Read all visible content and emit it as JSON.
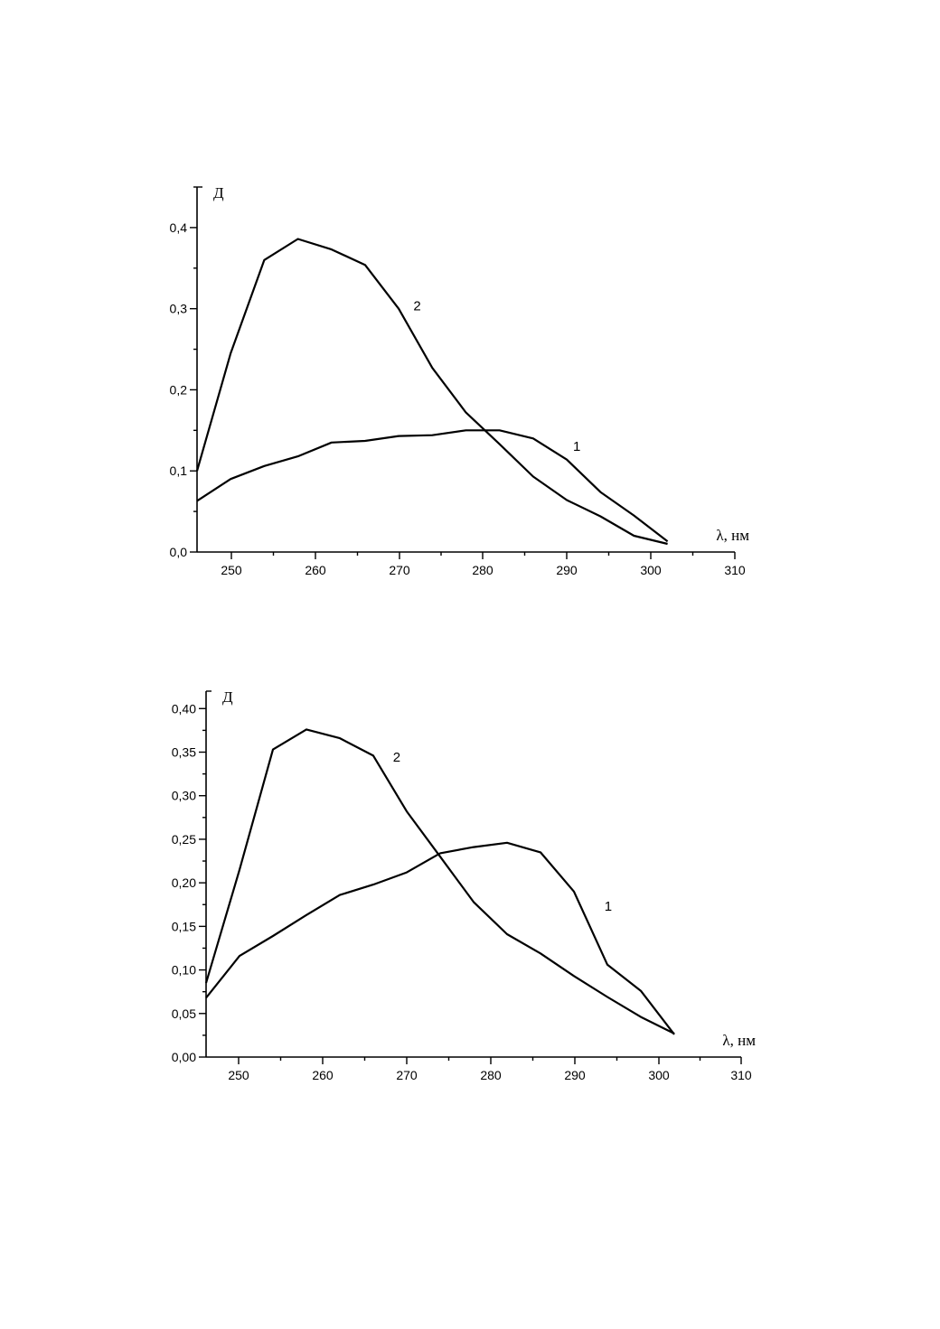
{
  "chart_data": [
    {
      "type": "line",
      "xlabel": "λ, нм",
      "ylabel": "Д",
      "xlim": [
        246,
        310
      ],
      "ylim": [
        0.0,
        0.45
      ],
      "xticks": [
        250,
        260,
        270,
        280,
        290,
        300,
        310
      ],
      "yticks": [
        0.0,
        0.1,
        0.2,
        0.3,
        0.4
      ],
      "ytick_labels": [
        "0,0",
        "0,1",
        "0,2",
        "0,3",
        "0,4"
      ],
      "series": [
        {
          "name": "1",
          "x": [
            246,
            250,
            254,
            258,
            262,
            266,
            270,
            274,
            278,
            282,
            286,
            290,
            294,
            298,
            302
          ],
          "y": [
            0.063,
            0.09,
            0.106,
            0.118,
            0.135,
            0.137,
            0.143,
            0.144,
            0.15,
            0.15,
            0.14,
            0.114,
            0.074,
            0.045,
            0.013
          ]
        },
        {
          "name": "2",
          "x": [
            246,
            250,
            254,
            258,
            262,
            266,
            270,
            274,
            278,
            282,
            286,
            290,
            294,
            298,
            302
          ],
          "y": [
            0.1,
            0.245,
            0.36,
            0.386,
            0.373,
            0.354,
            0.3,
            0.227,
            0.172,
            0.133,
            0.093,
            0.064,
            0.044,
            0.02,
            0.01
          ]
        }
      ],
      "labels": [
        {
          "text": "2",
          "x": 272.2,
          "y": 0.298
        },
        {
          "text": "1",
          "x": 291.2,
          "y": 0.125
        }
      ]
    },
    {
      "type": "line",
      "xlabel": "λ, нм",
      "ylabel": "Д",
      "xlim": [
        246,
        310
      ],
      "ylim": [
        0.0,
        0.42
      ],
      "xticks": [
        250,
        260,
        270,
        280,
        290,
        300,
        310
      ],
      "yticks": [
        0.0,
        0.05,
        0.1,
        0.15,
        0.2,
        0.25,
        0.3,
        0.35,
        0.4
      ],
      "ytick_labels": [
        "0,00",
        "0,05",
        "0,10",
        "0,15",
        "0,20",
        "0,25",
        "0,30",
        "0,35",
        "0,40"
      ],
      "series": [
        {
          "name": "1",
          "x": [
            246,
            250,
            254,
            258,
            262,
            266,
            270,
            274,
            278,
            282,
            286,
            290,
            294,
            298,
            302
          ],
          "y": [
            0.068,
            0.116,
            0.139,
            0.163,
            0.186,
            0.198,
            0.212,
            0.234,
            0.241,
            0.246,
            0.235,
            0.19,
            0.106,
            0.076,
            0.026
          ]
        },
        {
          "name": "2",
          "x": [
            246,
            250,
            254,
            258,
            262,
            266,
            270,
            274,
            278,
            282,
            286,
            290,
            294,
            298,
            302
          ],
          "y": [
            0.085,
            0.215,
            0.353,
            0.376,
            0.366,
            0.346,
            0.282,
            0.23,
            0.178,
            0.141,
            0.119,
            0.093,
            0.069,
            0.046,
            0.027
          ]
        }
      ],
      "labels": [
        {
          "text": "2",
          "x": 268.8,
          "y": 0.339
        },
        {
          "text": "1",
          "x": 294.1,
          "y": 0.168
        }
      ]
    }
  ]
}
